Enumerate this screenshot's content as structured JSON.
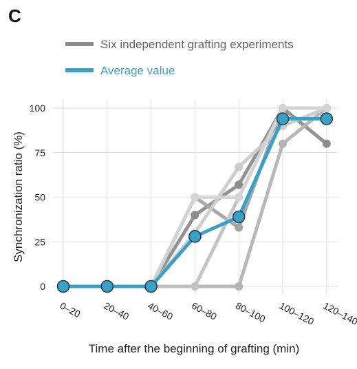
{
  "panel_label": "C",
  "colors": {
    "average": "#3aa0c6",
    "average_stroke": "#2a3f4a",
    "experiment_legend": "#8a8a8a",
    "experiments": [
      "#8f8b8c",
      "#a4a3a3",
      "#b4b4b4",
      "#c1c1c1",
      "#cbcbcb",
      "#d4d4d4"
    ],
    "grid": "#e6e6e6"
  },
  "chart_data": {
    "type": "line",
    "title": "",
    "xlabel": "Time after the beginning of grafting (min)",
    "ylabel": "Synchronization ratio (%)",
    "categories": [
      "0–20",
      "20–40",
      "40–60",
      "60–80",
      "80–100",
      "100–120",
      "120–140"
    ],
    "ylim": [
      0,
      100
    ],
    "yticks": [
      0,
      25,
      50,
      75,
      100
    ],
    "grid": true,
    "legend": {
      "position": "top-left",
      "entries": [
        "Six independent grafting experiments",
        "Average value"
      ]
    },
    "series": [
      {
        "values": [
          0,
          0,
          0,
          40,
          57,
          100,
          80
        ]
      },
      {
        "values": [
          0,
          0,
          0,
          50,
          33,
          100,
          100
        ]
      },
      {
        "values": [
          0,
          0,
          0,
          0,
          0,
          80,
          100
        ]
      },
      {
        "values": [
          0,
          0,
          0,
          0,
          50,
          100,
          100
        ]
      },
      {
        "values": [
          0,
          0,
          0,
          30,
          67,
          90,
          100
        ]
      },
      {
        "values": [
          0,
          0,
          0,
          50,
          50,
          100,
          100
        ]
      },
      {
        "name": "Average value",
        "values": [
          0,
          0,
          0,
          28,
          39,
          94,
          94
        ]
      }
    ]
  }
}
